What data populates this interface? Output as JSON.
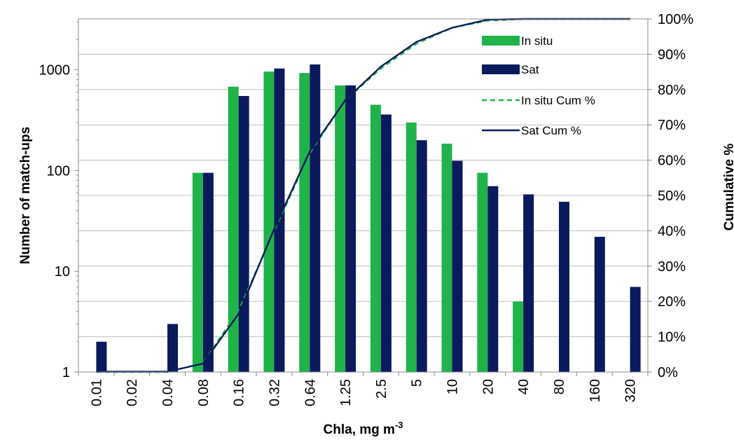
{
  "chart_data": {
    "type": "bar",
    "xlabel_main": "Chla, mg m",
    "xlabel_sup": "-3",
    "ylabel": "Number of match-ups",
    "y2label": "Cumulative %",
    "y_scale": "log",
    "ylim": [
      1,
      3200
    ],
    "y_ticks": [
      1,
      10,
      100,
      1000
    ],
    "y_tick_labels": [
      "1",
      "10",
      "100",
      "1000"
    ],
    "y2lim": [
      0,
      100
    ],
    "y2_ticks": [
      0,
      10,
      20,
      30,
      40,
      50,
      60,
      70,
      80,
      90,
      100
    ],
    "y2_tick_labels": [
      "0%",
      "10%",
      "20%",
      "30%",
      "40%",
      "50%",
      "60%",
      "70%",
      "80%",
      "90%",
      "100%"
    ],
    "grid": true,
    "legend_position": "top-right",
    "categories": [
      "0.01",
      "0.02",
      "0.04",
      "0.08",
      "0.16",
      "0.32",
      "0.64",
      "1.25",
      "2.5",
      "5",
      "10",
      "20",
      "40",
      "80",
      "160",
      "320"
    ],
    "series": [
      {
        "name": "In situ",
        "kind": "bar",
        "color": "#1fb34a",
        "values": [
          null,
          null,
          null,
          95,
          680,
          960,
          930,
          700,
          450,
          300,
          185,
          95,
          5,
          null,
          null,
          null
        ]
      },
      {
        "name": "Sat",
        "kind": "bar",
        "color": "#0b1a5c",
        "values": [
          2,
          null,
          3,
          95,
          550,
          1030,
          1130,
          700,
          360,
          200,
          125,
          70,
          58,
          49,
          22,
          7
        ]
      },
      {
        "name": "In situ Cum %",
        "kind": "line",
        "axis": "right",
        "dashed": true,
        "color": "#1fb34a",
        "values": [
          0,
          0,
          0,
          2.5,
          17.5,
          40,
          62,
          77,
          86,
          93,
          97.5,
          99.5,
          100,
          100,
          100,
          100
        ]
      },
      {
        "name": "Sat Cum %",
        "kind": "line",
        "axis": "right",
        "dashed": false,
        "color": "#0b1a5c",
        "values": [
          0.1,
          0.1,
          0.1,
          2.4,
          16.5,
          40.5,
          62.5,
          77,
          86.5,
          93.5,
          97.5,
          99.8,
          100,
          100,
          100,
          100
        ]
      }
    ]
  }
}
